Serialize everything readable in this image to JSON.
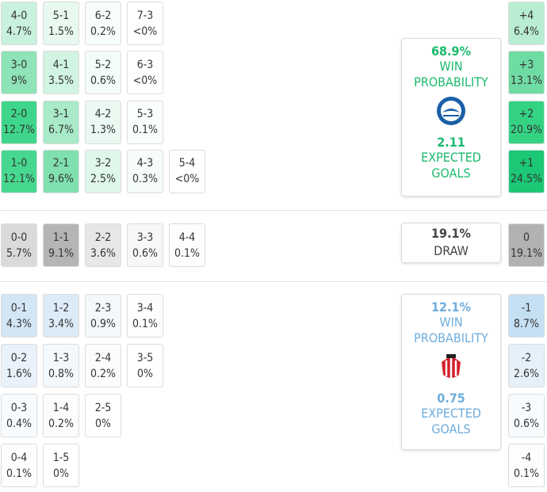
{
  "home": {
    "rows": [
      [
        {
          "score": "4-0",
          "prob": "4.7%",
          "color": "#c9f1dd"
        },
        {
          "score": "5-1",
          "prob": "1.5%",
          "color": "#e8f9f0"
        },
        {
          "score": "6-2",
          "prob": "0.2%",
          "color": "#f7fdfa"
        },
        {
          "score": "7-3",
          "prob": "<0%",
          "color": "#ffffff"
        }
      ],
      [
        {
          "score": "3-0",
          "prob": "9%",
          "color": "#8ee3b7"
        },
        {
          "score": "4-1",
          "prob": "3.5%",
          "color": "#d2f4e2"
        },
        {
          "score": "5-2",
          "prob": "0.6%",
          "color": "#f3fcf7"
        },
        {
          "score": "6-3",
          "prob": "<0%",
          "color": "#ffffff"
        }
      ],
      [
        {
          "score": "2-0",
          "prob": "12.7%",
          "color": "#3fd68b"
        },
        {
          "score": "3-1",
          "prob": "6.7%",
          "color": "#a9eac8"
        },
        {
          "score": "4-2",
          "prob": "1.3%",
          "color": "#eaf9f1"
        },
        {
          "score": "5-3",
          "prob": "0.1%",
          "color": "#fafefc"
        }
      ],
      [
        {
          "score": "1-0",
          "prob": "12.1%",
          "color": "#47d890"
        },
        {
          "score": "2-1",
          "prob": "9.6%",
          "color": "#80e0af"
        },
        {
          "score": "3-2",
          "prob": "2.5%",
          "color": "#dff7ea"
        },
        {
          "score": "4-3",
          "prob": "0.3%",
          "color": "#f6fdf9"
        },
        {
          "score": "5-4",
          "prob": "<0%",
          "color": "#ffffff"
        }
      ]
    ],
    "margins": [
      {
        "score": "+4",
        "prob": "6.4%",
        "color": "#b9edd2"
      },
      {
        "score": "+3",
        "prob": "13.1%",
        "color": "#6fdca4"
      },
      {
        "score": "+2",
        "prob": "20.9%",
        "color": "#34d384"
      },
      {
        "score": "+1",
        "prob": "24.5%",
        "color": "#1cc775"
      }
    ],
    "summary": {
      "probability": "68.9%",
      "probability_label": "WIN PROBABILITY",
      "xg": "2.11",
      "xg_label": "EXPECTED GOALS",
      "color": "#1cb96d"
    }
  },
  "draw": {
    "rows": [
      [
        {
          "score": "0-0",
          "prob": "5.7%",
          "color": "#dadada"
        },
        {
          "score": "1-1",
          "prob": "9.1%",
          "color": "#b5b5b5"
        },
        {
          "score": "2-2",
          "prob": "3.6%",
          "color": "#e7e7e7"
        },
        {
          "score": "3-3",
          "prob": "0.6%",
          "color": "#f7f7f7"
        },
        {
          "score": "4-4",
          "prob": "0.1%",
          "color": "#fdfdfd"
        }
      ]
    ],
    "margins": [
      {
        "score": "0",
        "prob": "19.1%",
        "color": "#b2b2b2"
      }
    ],
    "summary": {
      "probability": "19.1%",
      "probability_label": "DRAW"
    }
  },
  "away": {
    "rows": [
      [
        {
          "score": "0-1",
          "prob": "4.3%",
          "color": "#d2e6f6"
        },
        {
          "score": "1-2",
          "prob": "3.4%",
          "color": "#dcebf8"
        },
        {
          "score": "2-3",
          "prob": "0.9%",
          "color": "#f2f8fc"
        },
        {
          "score": "3-4",
          "prob": "0.1%",
          "color": "#fcfdfe"
        }
      ],
      [
        {
          "score": "0-2",
          "prob": "1.6%",
          "color": "#e9f2fa"
        },
        {
          "score": "1-3",
          "prob": "0.8%",
          "color": "#f3f8fc"
        },
        {
          "score": "2-4",
          "prob": "0.2%",
          "color": "#fafcfe"
        },
        {
          "score": "3-5",
          "prob": "0%",
          "color": "#ffffff"
        }
      ],
      [
        {
          "score": "0-3",
          "prob": "0.4%",
          "color": "#f8fbfd"
        },
        {
          "score": "1-4",
          "prob": "0.2%",
          "color": "#fafcfe"
        },
        {
          "score": "2-5",
          "prob": "0%",
          "color": "#ffffff"
        }
      ],
      [
        {
          "score": "0-4",
          "prob": "0.1%",
          "color": "#fcfdfe"
        },
        {
          "score": "1-5",
          "prob": "0%",
          "color": "#ffffff"
        }
      ]
    ],
    "margins": [
      {
        "score": "-1",
        "prob": "8.7%",
        "color": "#c5dff3"
      },
      {
        "score": "-2",
        "prob": "2.6%",
        "color": "#e6f0f9"
      },
      {
        "score": "-3",
        "prob": "0.6%",
        "color": "#f8fbfd"
      },
      {
        "score": "-4",
        "prob": "0.1%",
        "color": "#fcfdfe"
      }
    ],
    "summary": {
      "probability": "12.1%",
      "probability_label": "WIN PROBABILITY",
      "xg": "0.75",
      "xg_label": "EXPECTED GOALS",
      "color": "#6eaddd"
    }
  }
}
